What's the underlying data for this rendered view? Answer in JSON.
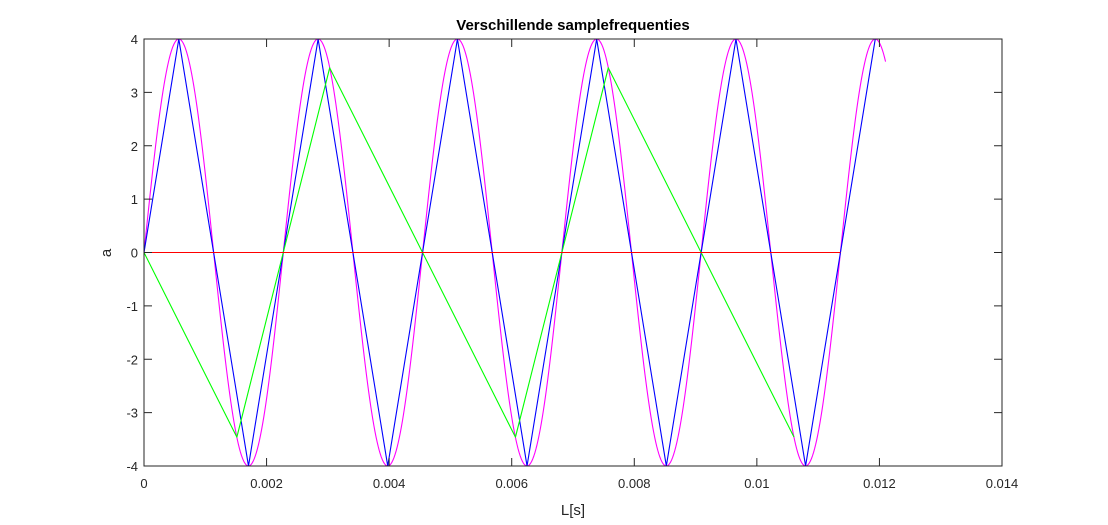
{
  "chart_data": {
    "type": "line",
    "title": "Verschillende samplefrequenties",
    "xlabel": "L[s]",
    "ylabel": "a",
    "xlim": [
      0,
      0.014
    ],
    "ylim": [
      -4,
      4
    ],
    "grid": false,
    "x_ticks": [
      {
        "value": 0,
        "label": "0"
      },
      {
        "value": 0.002,
        "label": "0.002"
      },
      {
        "value": 0.004,
        "label": "0.004"
      },
      {
        "value": 0.006,
        "label": "0.006"
      },
      {
        "value": 0.008,
        "label": "0.008"
      },
      {
        "value": 0.01,
        "label": "0.01"
      },
      {
        "value": 0.012,
        "label": "0.012"
      },
      {
        "value": 0.014,
        "label": "0.014"
      }
    ],
    "y_ticks": [
      {
        "value": -4,
        "label": "-4"
      },
      {
        "value": -3,
        "label": "-3"
      },
      {
        "value": -2,
        "label": "-2"
      },
      {
        "value": -1,
        "label": "-1"
      },
      {
        "value": 0,
        "label": "0"
      },
      {
        "value": 1,
        "label": "1"
      },
      {
        "value": 2,
        "label": "2"
      },
      {
        "value": 3,
        "label": "3"
      },
      {
        "value": 4,
        "label": "4"
      }
    ],
    "series": [
      {
        "color": "#ff00ff",
        "function": "4*sin(2*pi*440*t)",
        "x_start": 0,
        "x_end": 0.0121,
        "samples": 700
      },
      {
        "color": "#0000ff",
        "x": [
          0,
          0.000568,
          0.001136,
          0.001705,
          0.002273,
          0.002841,
          0.003409,
          0.003977,
          0.004545,
          0.005114,
          0.005682,
          0.00625,
          0.006818,
          0.007386,
          0.007955,
          0.008523,
          0.009091,
          0.009659,
          0.010227,
          0.010795,
          0.011364,
          0.011932
        ],
        "y": [
          0,
          4,
          0,
          -4,
          0,
          4,
          0,
          -4,
          0,
          4,
          0,
          -4,
          0,
          4,
          0,
          -4,
          0,
          4,
          0,
          -4,
          0,
          4
        ]
      },
      {
        "color": "#00ff00",
        "x": [
          0,
          0.001515,
          0.00303,
          0.004545,
          0.006061,
          0.007576,
          0.009091,
          0.010606
        ],
        "y": [
          0,
          -3.46,
          3.46,
          0,
          -3.46,
          3.46,
          0,
          -3.46
        ]
      },
      {
        "color": "#ff0000",
        "x": [
          0,
          0.011364
        ],
        "y": [
          0,
          0
        ]
      }
    ]
  }
}
